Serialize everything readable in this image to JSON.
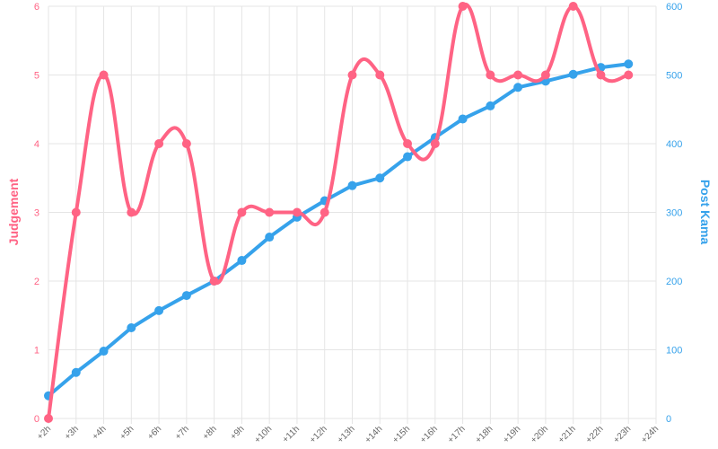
{
  "chart_data": {
    "type": "line",
    "categories": [
      "+2h",
      "+3h",
      "+4h",
      "+5h",
      "+6h",
      "+7h",
      "+8h",
      "+9h",
      "+10h",
      "+11h",
      "+12h",
      "+13h",
      "+14h",
      "+15h",
      "+16h",
      "+17h",
      "+18h",
      "+19h",
      "+20h",
      "+21h",
      "+22h",
      "+23h",
      "+24h"
    ],
    "series": [
      {
        "name": "Judgement",
        "axis": "left",
        "color": "#ff6384",
        "smooth": true,
        "values": [
          0,
          3,
          5,
          3,
          4,
          4,
          2,
          3,
          3,
          3,
          3,
          5,
          5,
          4,
          4,
          6,
          5,
          5,
          5,
          6,
          5,
          5,
          null
        ]
      },
      {
        "name": "Post Kama",
        "axis": "right",
        "color": "#36a2eb",
        "smooth": false,
        "values": [
          33,
          67,
          98,
          132,
          157,
          179,
          200,
          230,
          264,
          293,
          317,
          339,
          350,
          381,
          409,
          436,
          455,
          482,
          491,
          501,
          511,
          516,
          null
        ]
      }
    ],
    "ylabel_left": "Judgement",
    "ylabel_right": "Post Kama",
    "ylim_left": [
      0,
      6
    ],
    "ylim_right": [
      0,
      600
    ],
    "yticks_left": [
      "0",
      "1",
      "2",
      "3",
      "4",
      "5",
      "6"
    ],
    "yticks_right": [
      "0",
      "100",
      "200",
      "300",
      "400",
      "500",
      "600"
    ],
    "grid": true,
    "legend": "none"
  }
}
